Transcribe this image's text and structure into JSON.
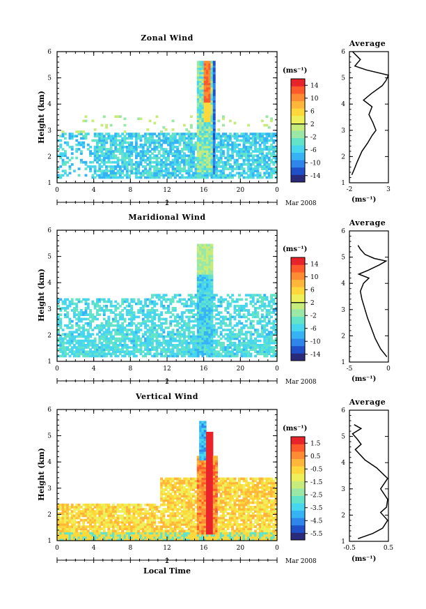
{
  "colors": {
    "scale": [
      "#2a2a7a",
      "#2050c8",
      "#2f86ea",
      "#35b3f5",
      "#48d6ef",
      "#63e3c8",
      "#9be8a6",
      "#c8ec7c",
      "#eef05a",
      "#ffd93b",
      "#ffb63a",
      "#ff8c33",
      "#ff5a2a",
      "#e8242a"
    ]
  },
  "common": {
    "y_label": "Height (km)",
    "x_ticks": [
      "0",
      "4",
      "8",
      "12",
      "16",
      "20",
      "0"
    ],
    "y_ticks": [
      "1",
      "2",
      "3",
      "4",
      "5",
      "6"
    ],
    "date_day": "2",
    "date_month": "Mar 2008",
    "x_label": "Local Time",
    "unit": "(ms⁻¹)",
    "avg_title": "Average",
    "avg_unit": "(ms⁻¹)"
  },
  "chart_data": [
    {
      "type": "heatmap",
      "title": "Zonal Wind",
      "ylabel": "Height (km)",
      "xlim": [
        0,
        24
      ],
      "ylim": [
        1,
        6
      ],
      "colorbar_ticks": [
        "14",
        "10",
        "6",
        "2",
        "-2",
        "-6",
        "-10",
        "-14"
      ],
      "colorbar_range": [
        -16,
        16
      ],
      "colorbar_zero": 2,
      "profile": {
        "title": "Average",
        "xlim": [
          -2,
          3
        ],
        "x_ticks": [
          "-2",
          "3"
        ],
        "points": [
          [
            -1.7,
            1.3
          ],
          [
            -1.4,
            1.5
          ],
          [
            -1.0,
            1.8
          ],
          [
            -0.4,
            2.2
          ],
          [
            0.3,
            2.5
          ],
          [
            0.9,
            2.8
          ],
          [
            1.4,
            3.0
          ],
          [
            1.0,
            3.3
          ],
          [
            0.5,
            3.6
          ],
          [
            0.9,
            3.9
          ],
          [
            -0.2,
            4.15
          ],
          [
            0.8,
            4.4
          ],
          [
            2.2,
            4.7
          ],
          [
            2.7,
            4.9
          ],
          [
            3.0,
            5.1
          ],
          [
            0.2,
            5.3
          ],
          [
            -1.3,
            5.45
          ],
          [
            -0.6,
            5.7
          ],
          [
            -1.6,
            6.0
          ]
        ]
      }
    },
    {
      "type": "heatmap",
      "title": "Maridional Wind",
      "ylabel": "Height (km)",
      "xlim": [
        0,
        24
      ],
      "ylim": [
        1,
        6
      ],
      "colorbar_ticks": [
        "14",
        "10",
        "6",
        "2",
        "-2",
        "-6",
        "-10",
        "-14"
      ],
      "colorbar_range": [
        -16,
        16
      ],
      "colorbar_zero": 2,
      "profile": {
        "title": "Average",
        "xlim": [
          -5,
          0
        ],
        "x_ticks": [
          "-5",
          "0"
        ],
        "points": [
          [
            -0.2,
            1.2
          ],
          [
            -1.0,
            1.5
          ],
          [
            -1.7,
            1.9
          ],
          [
            -2.2,
            2.3
          ],
          [
            -2.7,
            2.7
          ],
          [
            -3.0,
            3.0
          ],
          [
            -3.4,
            3.4
          ],
          [
            -3.6,
            3.7
          ],
          [
            -3.2,
            4.0
          ],
          [
            -2.5,
            4.2
          ],
          [
            -3.8,
            4.35
          ],
          [
            -2.6,
            4.5
          ],
          [
            -1.2,
            4.7
          ],
          [
            -0.3,
            4.85
          ],
          [
            -1.8,
            4.95
          ],
          [
            -3.0,
            5.1
          ],
          [
            -3.6,
            5.3
          ],
          [
            -3.9,
            5.45
          ]
        ]
      }
    },
    {
      "type": "heatmap",
      "title": "Vertical Wind",
      "ylabel": "Height (km)",
      "xlabel": "Local Time",
      "xlim": [
        0,
        24
      ],
      "ylim": [
        1,
        6
      ],
      "colorbar_ticks": [
        "1.5",
        "0.5",
        "-0.5",
        "-1.5",
        "-2.5",
        "-3.5",
        "-4.5",
        "-5.5"
      ],
      "colorbar_range": [
        -6,
        2
      ],
      "profile": {
        "title": "Average",
        "xlim": [
          -0.5,
          0.5
        ],
        "x_ticks": [
          "-0.5",
          "0.5"
        ],
        "points": [
          [
            -0.28,
            1.1
          ],
          [
            0.1,
            1.3
          ],
          [
            0.35,
            1.5
          ],
          [
            0.48,
            1.8
          ],
          [
            0.3,
            2.1
          ],
          [
            0.45,
            2.3
          ],
          [
            0.48,
            2.6
          ],
          [
            0.3,
            3.0
          ],
          [
            0.48,
            3.4
          ],
          [
            0.2,
            3.8
          ],
          [
            -0.1,
            4.1
          ],
          [
            -0.35,
            4.5
          ],
          [
            -0.2,
            4.7
          ],
          [
            -0.3,
            4.9
          ],
          [
            -0.42,
            5.1
          ],
          [
            -0.2,
            5.3
          ],
          [
            -0.38,
            5.45
          ]
        ]
      }
    }
  ]
}
